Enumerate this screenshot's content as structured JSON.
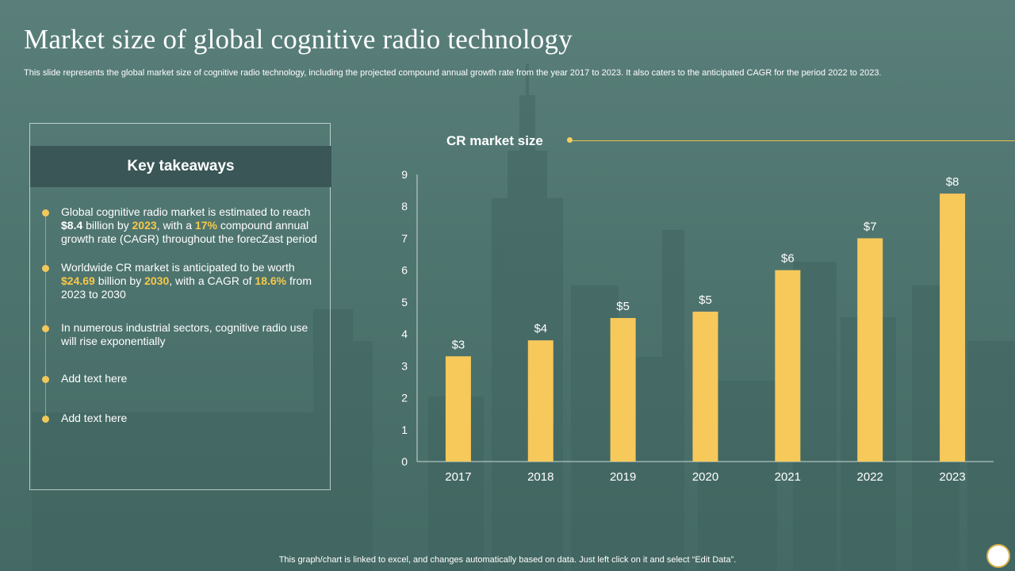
{
  "slide": {
    "title": "Market size of global cognitive radio technology",
    "subtitle": "This slide represents the global market size of cognitive radio technology, including the projected compound annual growth rate from the year 2017 to 2023. It also caters to the anticipated CAGR for the period 2022 to 2023.",
    "footer": "This graph/chart is linked to excel, and changes automatically based on data. Just left click on it and select “Edit Data”."
  },
  "takeaways": {
    "heading": "Key takeaways",
    "items": [
      {
        "parts": [
          {
            "text": "Global cognitive radio market is estimated to reach "
          },
          {
            "text": "$8.4",
            "style": "bold"
          },
          {
            "text": " billion by "
          },
          {
            "text": "2023",
            "style": "highlight"
          },
          {
            "text": ", with a "
          },
          {
            "text": "17%",
            "style": "highlight"
          },
          {
            "text": " compound annual growth rate (CAGR) throughout the forecZast period"
          }
        ]
      },
      {
        "parts": [
          {
            "text": "Worldwide CR market is anticipated to be worth "
          },
          {
            "text": "$24.69",
            "style": "highlight"
          },
          {
            "text": " billion by "
          },
          {
            "text": "2030",
            "style": "highlight"
          },
          {
            "text": ", with a CAGR of "
          },
          {
            "text": "18.6%",
            "style": "highlight"
          },
          {
            "text": " from 2023 to 2030"
          }
        ]
      },
      {
        "parts": [
          {
            "text": "In numerous industrial sectors, cognitive radio use will rise exponentially"
          }
        ]
      },
      {
        "parts": [
          {
            "text": "Add text here"
          }
        ]
      },
      {
        "parts": [
          {
            "text": "Add text here"
          }
        ]
      }
    ]
  },
  "chart_data": {
    "type": "bar",
    "title": "CR market size",
    "categories": [
      "2017",
      "2018",
      "2019",
      "2020",
      "2021",
      "2022",
      "2023"
    ],
    "values": [
      3.3,
      3.8,
      4.5,
      4.7,
      6.0,
      7.0,
      8.4
    ],
    "data_labels": [
      "$3",
      "$4",
      "$5",
      "$5",
      "$6",
      "$7",
      "$8"
    ],
    "y_ticks": [
      "0",
      "1",
      "2",
      "3",
      "4",
      "5",
      "6",
      "7",
      "8",
      "9"
    ],
    "ylim": [
      0,
      9
    ],
    "xlabel": "",
    "ylabel": "",
    "grid": false,
    "legend": "none",
    "bar_color": "#f7c95a",
    "axis_color": "#c9d8d5"
  },
  "colors": {
    "background": "#4f7571",
    "panel_header": "#3a5656",
    "accent": "#f7c948"
  }
}
